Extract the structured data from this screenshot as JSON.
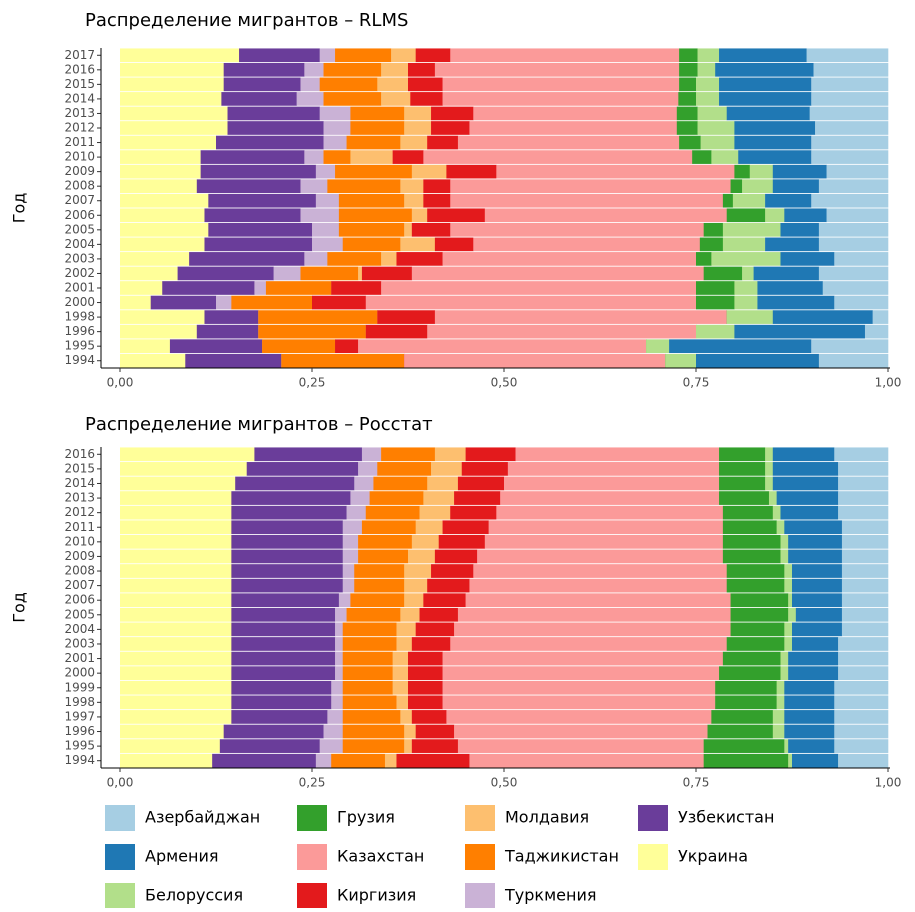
{
  "chart_data": [
    {
      "type": "bar",
      "orientation": "horizontal",
      "stacked": true,
      "title": "Распределение мигрантов – RLMS",
      "ylabel": "Год",
      "categories": [
        "2017",
        "2016",
        "2015",
        "2014",
        "2013",
        "2012",
        "2011",
        "2010",
        "2009",
        "2008",
        "2007",
        "2006",
        "2005",
        "2004",
        "2003",
        "2002",
        "2001",
        "2000",
        "1998",
        "1996",
        "1995",
        "1994"
      ],
      "xlim": [
        0,
        1
      ],
      "xticks": [
        {
          "value": 0,
          "label": "0,00"
        },
        {
          "value": 0.25,
          "label": "0,25"
        },
        {
          "value": 0.5,
          "label": "0,50"
        },
        {
          "value": 0.75,
          "label": "0,75"
        },
        {
          "value": 1,
          "label": "1,00"
        }
      ],
      "series": [
        {
          "color": "#a6cee3",
          "values": [
            0.106,
            0.097,
            0.1,
            0.1,
            0.102,
            0.095,
            0.1,
            0.1,
            0.08,
            0.09,
            0.1,
            0.08,
            0.09,
            0.09,
            0.07,
            0.09,
            0.085,
            0.07,
            0.02,
            0.03,
            0.1,
            0.09
          ]
        },
        {
          "color": "#1f78b4",
          "values": [
            0.114,
            0.128,
            0.12,
            0.12,
            0.108,
            0.105,
            0.1,
            0.095,
            0.07,
            0.06,
            0.06,
            0.055,
            0.05,
            0.07,
            0.07,
            0.085,
            0.085,
            0.1,
            0.13,
            0.17,
            0.185,
            0.16
          ]
        },
        {
          "color": "#b2df8a",
          "values": [
            0.028,
            0.023,
            0.03,
            0.03,
            0.038,
            0.048,
            0.044,
            0.035,
            0.03,
            0.04,
            0.042,
            0.025,
            0.075,
            0.055,
            0.09,
            0.015,
            0.03,
            0.03,
            0.06,
            0.05,
            0.03,
            0.04
          ]
        },
        {
          "color": "#33a02c",
          "values": [
            0.024,
            0.024,
            0.022,
            0.023,
            0.027,
            0.027,
            0.028,
            0.025,
            0.02,
            0.015,
            0.013,
            0.05,
            0.025,
            0.03,
            0.02,
            0.05,
            0.05,
            0.05,
            0,
            0,
            0,
            0
          ]
        },
        {
          "color": "#fb9a99",
          "values": [
            0.298,
            0.318,
            0.308,
            0.307,
            0.265,
            0.27,
            0.288,
            0.35,
            0.31,
            0.365,
            0.355,
            0.315,
            0.33,
            0.295,
            0.33,
            0.38,
            0.41,
            0.43,
            0.38,
            0.35,
            0.375,
            0.34
          ]
        },
        {
          "color": "#e31a1c",
          "values": [
            0.045,
            0.035,
            0.045,
            0.042,
            0.055,
            0.05,
            0.04,
            0.04,
            0.065,
            0.035,
            0.035,
            0.075,
            0.05,
            0.05,
            0.06,
            0.065,
            0.065,
            0.07,
            0.075,
            0.08,
            0.03,
            0
          ]
        },
        {
          "color": "#fdbf6f",
          "values": [
            0.032,
            0.035,
            0.04,
            0.038,
            0.035,
            0.035,
            0.035,
            0.055,
            0.045,
            0.03,
            0.025,
            0.02,
            0.01,
            0.045,
            0.02,
            0.005,
            0,
            0,
            0,
            0,
            0,
            0
          ]
        },
        {
          "color": "#ff7f00",
          "values": [
            0.073,
            0.075,
            0.075,
            0.075,
            0.07,
            0.07,
            0.07,
            0.035,
            0.1,
            0.095,
            0.085,
            0.095,
            0.085,
            0.075,
            0.07,
            0.075,
            0.085,
            0.105,
            0.155,
            0.14,
            0.095,
            0.16
          ]
        },
        {
          "color": "#cab2d6",
          "values": [
            0.02,
            0.025,
            0.025,
            0.035,
            0.04,
            0.035,
            0.03,
            0.025,
            0.025,
            0.035,
            0.03,
            0.05,
            0.035,
            0.04,
            0.03,
            0.035,
            0.015,
            0.02,
            0,
            0,
            0,
            0
          ]
        },
        {
          "color": "#6a3d9a",
          "values": [
            0.105,
            0.105,
            0.1,
            0.098,
            0.12,
            0.125,
            0.14,
            0.135,
            0.15,
            0.135,
            0.14,
            0.125,
            0.135,
            0.14,
            0.15,
            0.125,
            0.12,
            0.085,
            0.07,
            0.08,
            0.12,
            0.125
          ]
        },
        {
          "color": "#ffff99",
          "values": [
            0.155,
            0.135,
            0.135,
            0.132,
            0.14,
            0.14,
            0.125,
            0.105,
            0.105,
            0.1,
            0.115,
            0.11,
            0.115,
            0.11,
            0.09,
            0.075,
            0.055,
            0.04,
            0.11,
            0.1,
            0.065,
            0.085
          ]
        }
      ]
    },
    {
      "type": "bar",
      "orientation": "horizontal",
      "stacked": true,
      "title": "Распределение мигрантов – Росстат",
      "ylabel": "Год",
      "categories": [
        "2016",
        "2015",
        "2014",
        "2013",
        "2012",
        "2011",
        "2010",
        "2009",
        "2008",
        "2007",
        "2006",
        "2005",
        "2004",
        "2003",
        "2001",
        "2000",
        "1999",
        "1998",
        "1997",
        "1996",
        "1995",
        "1994"
      ],
      "xlim": [
        0,
        1
      ],
      "xticks": [
        {
          "value": 0,
          "label": "0,00"
        },
        {
          "value": 0.25,
          "label": "0,25"
        },
        {
          "value": 0.5,
          "label": "0,50"
        },
        {
          "value": 0.75,
          "label": "0,75"
        },
        {
          "value": 1,
          "label": "1,00"
        }
      ],
      "series": [
        {
          "name": "Азербайджан",
          "color": "#a6cee3",
          "values": [
            0.07,
            0.065,
            0.065,
            0.065,
            0.065,
            0.06,
            0.06,
            0.06,
            0.06,
            0.06,
            0.06,
            0.06,
            0.06,
            0.065,
            0.065,
            0.065,
            0.07,
            0.07,
            0.07,
            0.07,
            0.07,
            0.065
          ]
        },
        {
          "name": "Армения",
          "color": "#1f78b4",
          "values": [
            0.08,
            0.085,
            0.085,
            0.08,
            0.075,
            0.075,
            0.07,
            0.07,
            0.065,
            0.065,
            0.065,
            0.06,
            0.065,
            0.06,
            0.065,
            0.065,
            0.065,
            0.065,
            0.065,
            0.065,
            0.06,
            0.06
          ]
        },
        {
          "name": "Белоруссия",
          "color": "#b2df8a",
          "values": [
            0.01,
            0.01,
            0.01,
            0.01,
            0.01,
            0.01,
            0.01,
            0.01,
            0.01,
            0.01,
            0.005,
            0.01,
            0.01,
            0.01,
            0.01,
            0.01,
            0.01,
            0.01,
            0.015,
            0.015,
            0.005,
            0.005
          ]
        },
        {
          "name": "Грузия",
          "color": "#33a02c",
          "values": [
            0.06,
            0.06,
            0.06,
            0.065,
            0.065,
            0.07,
            0.075,
            0.075,
            0.075,
            0.075,
            0.075,
            0.075,
            0.07,
            0.075,
            0.075,
            0.08,
            0.08,
            0.08,
            0.08,
            0.085,
            0.105,
            0.11
          ]
        },
        {
          "name": "Казахстан",
          "color": "#fb9a99",
          "values": [
            0.265,
            0.275,
            0.28,
            0.285,
            0.295,
            0.305,
            0.31,
            0.32,
            0.33,
            0.335,
            0.345,
            0.355,
            0.36,
            0.36,
            0.365,
            0.36,
            0.355,
            0.355,
            0.345,
            0.33,
            0.32,
            0.305
          ]
        },
        {
          "name": "Киргизия",
          "color": "#e31a1c",
          "values": [
            0.065,
            0.06,
            0.06,
            0.06,
            0.06,
            0.06,
            0.06,
            0.055,
            0.055,
            0.055,
            0.055,
            0.05,
            0.05,
            0.05,
            0.045,
            0.045,
            0.045,
            0.045,
            0.045,
            0.05,
            0.06,
            0.095
          ]
        },
        {
          "name": "Молдавия",
          "color": "#fdbf6f",
          "values": [
            0.04,
            0.04,
            0.04,
            0.04,
            0.04,
            0.035,
            0.035,
            0.035,
            0.035,
            0.03,
            0.025,
            0.025,
            0.025,
            0.02,
            0.02,
            0.02,
            0.02,
            0.015,
            0.015,
            0.015,
            0.01,
            0.015
          ]
        },
        {
          "name": "Таджикистан",
          "color": "#ff7f00",
          "values": [
            0.07,
            0.07,
            0.07,
            0.07,
            0.07,
            0.07,
            0.07,
            0.065,
            0.065,
            0.065,
            0.07,
            0.07,
            0.07,
            0.07,
            0.065,
            0.065,
            0.065,
            0.07,
            0.075,
            0.08,
            0.08,
            0.07
          ]
        },
        {
          "name": "Туркмения",
          "color": "#cab2d6",
          "values": [
            0.025,
            0.025,
            0.025,
            0.025,
            0.025,
            0.025,
            0.02,
            0.02,
            0.015,
            0.015,
            0.015,
            0.015,
            0.01,
            0.01,
            0.01,
            0.01,
            0.015,
            0.015,
            0.02,
            0.025,
            0.03,
            0.02
          ]
        },
        {
          "name": "Узбекистан",
          "color": "#6a3d9a",
          "values": [
            0.14,
            0.145,
            0.155,
            0.155,
            0.15,
            0.145,
            0.145,
            0.145,
            0.145,
            0.145,
            0.14,
            0.135,
            0.135,
            0.135,
            0.135,
            0.135,
            0.13,
            0.13,
            0.125,
            0.13,
            0.13,
            0.135
          ]
        },
        {
          "name": "Украина",
          "color": "#ffff99",
          "values": [
            0.175,
            0.165,
            0.15,
            0.145,
            0.145,
            0.145,
            0.145,
            0.145,
            0.145,
            0.145,
            0.145,
            0.145,
            0.145,
            0.145,
            0.145,
            0.145,
            0.145,
            0.145,
            0.145,
            0.135,
            0.13,
            0.12
          ]
        }
      ]
    }
  ]
}
